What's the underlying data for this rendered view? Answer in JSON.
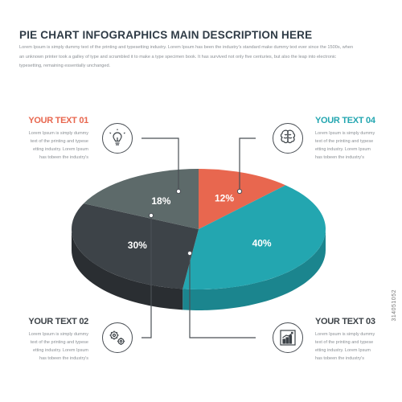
{
  "header": {
    "title": "PIE CHART INFOGRAPHICS MAIN DESCRIPTION HERE",
    "description": "Lorem Ipsum is simply dummy text of the printing and typesetting industry. Lorem Ipsum has been the industry's standard make dummy text ever since the 1500s, when an unknown printer took a galley of type and scrambled it to make a type specimen book. It has survived not only five centuries, but also the leap into electronic typesetting, remaining essentially unchanged."
  },
  "chart_data": {
    "type": "pie",
    "style": "3d",
    "slices": [
      {
        "label": "12%",
        "value": 12,
        "color": "#e8674f",
        "side": "#c65543"
      },
      {
        "label": "40%",
        "value": 40,
        "color": "#23a6b0",
        "side": "#1b858e"
      },
      {
        "label": "30%",
        "value": 30,
        "color": "#3d4348",
        "side": "#2a2e32"
      },
      {
        "label": "18%",
        "value": 18,
        "color": "#5d6a6a",
        "side": "#3e4747"
      }
    ]
  },
  "blocks": [
    {
      "title": "YOUR TEXT 01",
      "color": "#e8674f",
      "icon": "lightbulb-icon",
      "body": "Lorem Ipsum is simply dummy text of the printing and typese etting industry. Lorem Ipsum has tobeen the industry's"
    },
    {
      "title": "YOUR TEXT 02",
      "color": "#3d4348",
      "icon": "gears-icon",
      "body": "Lorem Ipsum is simply dummy text of the printing and typese etting industry. Lorem Ipsum has tobeen the industry's"
    },
    {
      "title": "YOUR TEXT 03",
      "color": "#3d4348",
      "icon": "bar-chart-icon",
      "body": "Lorem Ipsum is simply dummy text of the printing and typese etting industry. Lorem Ipsum has tobeen the industry's"
    },
    {
      "title": "YOUR TEXT 04",
      "color": "#23a6b0",
      "icon": "brain-icon",
      "body": "Lorem Ipsum is simply dummy text of the printing and typese etting industry. Lorem Ipsum has tobeen the industry's"
    }
  ],
  "watermark": "314051052"
}
